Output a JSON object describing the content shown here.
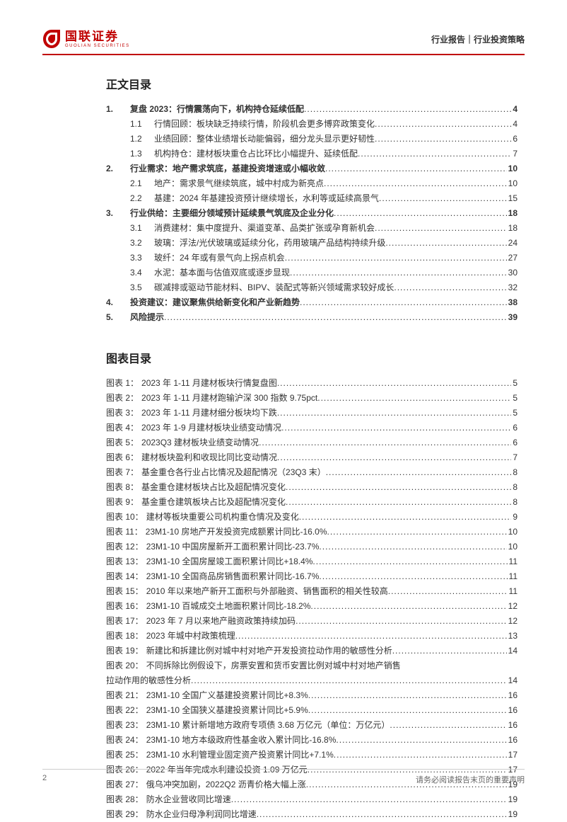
{
  "header": {
    "logo_cn": "国联证券",
    "logo_en": "GUOLIAN SECURITIES",
    "right": "行业报告｜行业投资策略"
  },
  "toc_title": "正文目录",
  "toc": [
    {
      "type": "h1",
      "num": "1.",
      "text": "复盘 2023：行情震荡向下，机构持仓延续低配",
      "page": "4"
    },
    {
      "type": "h2",
      "num": "1.1",
      "text": "行情回顾：板块缺乏持续行情，阶段机会更多博弈政策变化",
      "page": "4"
    },
    {
      "type": "h2",
      "num": "1.2",
      "text": "业绩回顾：整体业绩增长动能偏弱，细分龙头显示更好韧性",
      "page": "6"
    },
    {
      "type": "h2",
      "num": "1.3",
      "text": "机构持仓：建材板块重仓占比环比小幅提升、延续低配",
      "page": "7"
    },
    {
      "type": "h1",
      "num": "2.",
      "text": "行业需求：地产需求筑底，基建投资增速或小幅收敛",
      "page": "10"
    },
    {
      "type": "h2",
      "num": "2.1",
      "text": "地产：需求景气继续筑底，城中村成为新亮点",
      "page": "10"
    },
    {
      "type": "h2",
      "num": "2.2",
      "text": "基建：2024 年基建投资预计继续增长，水利等或延续高景气",
      "page": "15"
    },
    {
      "type": "h1",
      "num": "3.",
      "text": "行业供给：主要细分领域预计延续景气筑底及企业分化",
      "page": "18"
    },
    {
      "type": "h2",
      "num": "3.1",
      "text": "消费建材：集中度提升、渠道变革、品类扩张或孕育新机会",
      "page": "18"
    },
    {
      "type": "h2",
      "num": "3.2",
      "text": "玻璃：浮法/光伏玻璃或延续分化，药用玻璃产品结构持续升级",
      "page": "24"
    },
    {
      "type": "h2",
      "num": "3.3",
      "text": "玻纤：24 年或有景气向上拐点机会",
      "page": "27"
    },
    {
      "type": "h2",
      "num": "3.4",
      "text": "水泥：基本面与估值双底或逐步显现",
      "page": "30"
    },
    {
      "type": "h2",
      "num": "3.5",
      "text": "碳减排或驱动节能材料、BIPV、装配式等新兴领域需求较好成长",
      "page": "32"
    },
    {
      "type": "h1",
      "num": "4.",
      "text": "投资建议：建议聚焦供给新变化和产业新趋势",
      "page": "38"
    },
    {
      "type": "h1",
      "num": "5.",
      "text": "风险提示",
      "page": "39"
    }
  ],
  "fig_title": "图表目录",
  "figs": [
    {
      "label": "图表 1：",
      "text": "2023 年 1-11 月建材板块行情复盘图",
      "page": "5"
    },
    {
      "label": "图表 2：",
      "text": "2023 年 1-11 月建材跑输沪深 300 指数 9.75pct",
      "page": "5"
    },
    {
      "label": "图表 3：",
      "text": "2023 年 1-11 月建材细分板块均下跌",
      "page": "5"
    },
    {
      "label": "图表 4：",
      "text": "2023 年 1-9 月建材板块业绩变动情况",
      "page": "6"
    },
    {
      "label": "图表 5：",
      "text": "2023Q3 建材板块业绩变动情况",
      "page": "6"
    },
    {
      "label": "图表 6：",
      "text": "建材板块盈利和收现比同比变动情况",
      "page": "7"
    },
    {
      "label": "图表 7：",
      "text": "基金重仓各行业占比情况及超配情况（23Q3 末）",
      "page": "8"
    },
    {
      "label": "图表 8：",
      "text": "基金重仓建材板块占比及超配情况变化",
      "page": "8"
    },
    {
      "label": "图表 9：",
      "text": "基金重仓建筑板块占比及超配情况变化",
      "page": "8"
    },
    {
      "label": "图表 10：",
      "text": "建材等板块重要公司机构重仓情况及变化",
      "page": "9"
    },
    {
      "label": "图表 11：",
      "text": "23M1-10 房地产开发投资完成额累计同比-16.0%",
      "page": "10"
    },
    {
      "label": "图表 12：",
      "text": "23M1-10 中国房屋新开工面积累计同比-23.7%",
      "page": "10"
    },
    {
      "label": "图表 13：",
      "text": "23M1-10 全国房屋竣工面积累计同比+18.4%",
      "page": "11"
    },
    {
      "label": "图表 14：",
      "text": "23M1-10 全国商品房销售面积累计同比-16.7%",
      "page": "11"
    },
    {
      "label": "图表 15：",
      "text": "2010 年以来地产新开工面积与外部融资、销售面积的相关性较高",
      "page": "11"
    },
    {
      "label": "图表 16：",
      "text": "23M1-10 百城成交土地面积累计同比-18.2%",
      "page": "12"
    },
    {
      "label": "图表 17：",
      "text": "2023 年 7 月以来地产融资政策持续加码",
      "page": "12"
    },
    {
      "label": "图表 18：",
      "text": "2023 年城中村政策梳理",
      "page": "13"
    },
    {
      "label": "图表 19：",
      "text": "新建比和拆建比例对城中村对地产开发投资拉动作用的敏感性分析",
      "page": "14"
    },
    {
      "label": "图表 20：",
      "text": "不同拆除比例假设下，房票安置和货币安置比例对城中村对地产销售拉动作用的敏感性分析",
      "page": "14",
      "wrap": true
    },
    {
      "label": "图表 21：",
      "text": "23M1-10 全国广义基建投资累计同比+8.3%",
      "page": "16"
    },
    {
      "label": "图表 22：",
      "text": "23M1-10 全国狭义基建投资累计同比+5.9%",
      "page": "16"
    },
    {
      "label": "图表 23：",
      "text": "23M1-10 累计新增地方政府专项债 3.68 万亿元（单位：万亿元）",
      "page": "16"
    },
    {
      "label": "图表 24：",
      "text": "23M1-10 地方本级政府性基金收入累计同比-16.8%",
      "page": "16"
    },
    {
      "label": "图表 25：",
      "text": "23M1-10 水利管理业固定资产投资累计同比+7.1%",
      "page": "17"
    },
    {
      "label": "图表 26：",
      "text": "2022 年当年完成水利建设投资 1.09 万亿元",
      "page": "17"
    },
    {
      "label": "图表 27：",
      "text": "俄乌冲突加剧，2022Q2 沥青价格大幅上涨",
      "page": "19"
    },
    {
      "label": "图表 28：",
      "text": "防水企业营收同比增速",
      "page": "19"
    },
    {
      "label": "图表 29：",
      "text": "防水企业归母净利润同比增速",
      "page": "19"
    }
  ],
  "footer": {
    "page": "2",
    "note": "请务必阅读报告末页的重要声明"
  },
  "colors": {
    "brand": "#c00000",
    "text": "#333333"
  }
}
